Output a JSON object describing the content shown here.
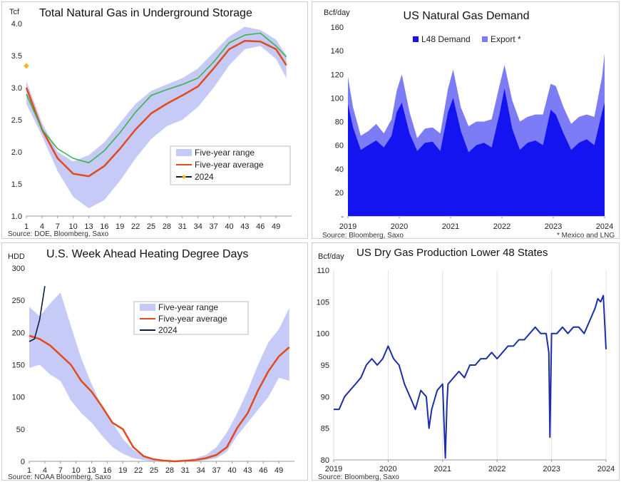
{
  "chart_data": [
    {
      "type": "area",
      "title": "Total Natural Gas in Underground Storage",
      "ylabel": "Tcf",
      "source": "Source: DOE, Bloomberg, Saxo",
      "ylim": [
        1.0,
        4.0
      ],
      "yticks": [
        "1.0",
        "1.5",
        "2.0",
        "2.5",
        "3.0",
        "3.5",
        "4.0"
      ],
      "xlim": [
        1,
        52
      ],
      "xticks": [
        "1",
        "4",
        "7",
        "10",
        "13",
        "16",
        "19",
        "22",
        "25",
        "28",
        "31",
        "34",
        "37",
        "40",
        "43",
        "46",
        "49"
      ],
      "legend_position": "bottom-right",
      "x": [
        1,
        4,
        7,
        10,
        13,
        16,
        19,
        22,
        25,
        28,
        31,
        34,
        37,
        40,
        43,
        46,
        49,
        51
      ],
      "series": [
        {
          "name": "Five-year range",
          "kind": "band",
          "color": "#c5caf7",
          "low": [
            2.75,
            2.25,
            1.7,
            1.3,
            1.12,
            1.25,
            1.55,
            1.9,
            2.2,
            2.4,
            2.5,
            2.7,
            3.0,
            3.35,
            3.6,
            3.65,
            3.45,
            3.15
          ],
          "high": [
            3.1,
            2.45,
            2.0,
            1.85,
            1.95,
            2.15,
            2.45,
            2.75,
            2.95,
            3.05,
            3.15,
            3.3,
            3.55,
            3.8,
            3.95,
            3.9,
            3.75,
            3.5
          ]
        },
        {
          "name": "Five-year average",
          "kind": "line",
          "color": "#e04a1c",
          "values": [
            3.0,
            2.35,
            1.9,
            1.66,
            1.62,
            1.78,
            2.05,
            2.35,
            2.6,
            2.75,
            2.88,
            3.02,
            3.3,
            3.6,
            3.73,
            3.72,
            3.6,
            3.35
          ]
        },
        {
          "name": "",
          "kind": "line",
          "color": "#3cb34a",
          "values": [
            2.9,
            2.35,
            2.05,
            1.9,
            1.83,
            2.02,
            2.3,
            2.62,
            2.88,
            2.97,
            3.05,
            3.15,
            3.4,
            3.7,
            3.82,
            3.85,
            3.65,
            3.48
          ]
        },
        {
          "name": "2024",
          "kind": "line",
          "color": "#0d1f3c",
          "marker_color": "#f2b82a",
          "x": [
            1
          ],
          "values": [
            3.34
          ]
        }
      ]
    },
    {
      "type": "area",
      "title": "US Natural Gas Demand",
      "ylabel": "Bcf/day",
      "source": "Source: Bloomberg, Saxo",
      "note": "* Mexico and LNG",
      "ylim": [
        0,
        160
      ],
      "yticks": [
        "-",
        "20",
        "40",
        "60",
        "80",
        "100",
        "120",
        "140",
        "160"
      ],
      "xlim": [
        2019,
        2024
      ],
      "xticks": [
        "2019",
        "2020",
        "2021",
        "2022",
        "2023",
        "2024"
      ],
      "legend_position": "top-center",
      "x": [
        2019.0,
        2019.1,
        2019.25,
        2019.4,
        2019.55,
        2019.7,
        2019.85,
        2019.95,
        2020.05,
        2020.2,
        2020.35,
        2020.5,
        2020.65,
        2020.8,
        2020.95,
        2021.05,
        2021.2,
        2021.35,
        2021.5,
        2021.65,
        2021.8,
        2021.95,
        2022.05,
        2022.2,
        2022.35,
        2022.5,
        2022.65,
        2022.8,
        2022.95,
        2023.05,
        2023.2,
        2023.35,
        2023.5,
        2023.65,
        2023.8,
        2023.95,
        2024.0
      ],
      "series": [
        {
          "name": "L48 Demand",
          "color": "#1414f0",
          "values": [
            95,
            75,
            56,
            60,
            64,
            58,
            68,
            88,
            96,
            70,
            55,
            62,
            63,
            55,
            88,
            100,
            72,
            54,
            60,
            62,
            58,
            86,
            108,
            74,
            56,
            62,
            64,
            60,
            90,
            86,
            70,
            56,
            62,
            65,
            60,
            88,
            96
          ]
        },
        {
          "name": "Export *",
          "color": "#7c7cf6",
          "values": [
            118,
            92,
            68,
            72,
            78,
            70,
            82,
            106,
            120,
            88,
            66,
            74,
            75,
            70,
            108,
            124,
            92,
            76,
            80,
            80,
            82,
            110,
            128,
            98,
            80,
            84,
            86,
            86,
            112,
            110,
            92,
            78,
            84,
            86,
            84,
            118,
            138
          ]
        }
      ]
    },
    {
      "type": "area",
      "title": "U.S. Week Ahead Heating Degree Days",
      "ylabel": "HDD",
      "source": "Source: NOAA Bloomberg, Saxo",
      "ylim": [
        0,
        300
      ],
      "yticks": [
        "0",
        "50",
        "100",
        "150",
        "200",
        "250",
        "300"
      ],
      "xlim": [
        1,
        52
      ],
      "xticks": [
        "1",
        "4",
        "7",
        "10",
        "13",
        "16",
        "19",
        "22",
        "25",
        "28",
        "31",
        "34",
        "37",
        "40",
        "43",
        "46",
        "49"
      ],
      "legend_position": "top-center",
      "x": [
        1,
        3,
        5,
        7,
        9,
        11,
        13,
        15,
        17,
        19,
        21,
        23,
        25,
        27,
        29,
        31,
        33,
        35,
        37,
        39,
        41,
        43,
        45,
        47,
        49,
        51
      ],
      "series": [
        {
          "name": "Five-year range",
          "kind": "band",
          "color": "#c5caf7",
          "low": [
            145,
            150,
            135,
            125,
            95,
            75,
            60,
            40,
            22,
            12,
            5,
            2,
            0,
            0,
            0,
            0,
            0,
            2,
            5,
            15,
            40,
            60,
            80,
            100,
            130,
            125
          ],
          "high": [
            240,
            225,
            245,
            262,
            210,
            160,
            120,
            85,
            60,
            35,
            18,
            8,
            3,
            1,
            1,
            2,
            5,
            10,
            22,
            45,
            75,
            110,
            150,
            185,
            205,
            238
          ]
        },
        {
          "name": "Five-year average",
          "kind": "line",
          "color": "#e04a1c",
          "values": [
            195,
            190,
            180,
            165,
            150,
            125,
            108,
            85,
            60,
            50,
            22,
            8,
            3,
            1,
            0,
            1,
            2,
            5,
            10,
            22,
            52,
            75,
            110,
            140,
            163,
            177
          ]
        },
        {
          "name": "2024",
          "kind": "line",
          "color": "#0d1f3c",
          "x": [
            1,
            2,
            3,
            4
          ],
          "values": [
            186,
            190,
            220,
            272
          ]
        }
      ]
    },
    {
      "type": "line",
      "title": "US Dry Gas Production Lower 48 States",
      "ylabel": "Bcf/day",
      "source": "Source: Bloomberg, Saxo",
      "ylim": [
        80,
        110
      ],
      "yticks": [
        "80",
        "85",
        "90",
        "95",
        "100",
        "105",
        "110"
      ],
      "xlim": [
        2019,
        2024
      ],
      "xticks": [
        "2019",
        "2020",
        "2021",
        "2022",
        "2023",
        "2024"
      ],
      "x": [
        2019.0,
        2019.1,
        2019.2,
        2019.3,
        2019.4,
        2019.5,
        2019.6,
        2019.7,
        2019.8,
        2019.9,
        2020.0,
        2020.1,
        2020.2,
        2020.3,
        2020.4,
        2020.5,
        2020.6,
        2020.7,
        2020.75,
        2020.8,
        2020.9,
        2021.0,
        2021.05,
        2021.08,
        2021.1,
        2021.2,
        2021.3,
        2021.4,
        2021.5,
        2021.6,
        2021.7,
        2021.8,
        2021.9,
        2022.0,
        2022.1,
        2022.2,
        2022.3,
        2022.4,
        2022.5,
        2022.6,
        2022.7,
        2022.8,
        2022.9,
        2022.95,
        2022.97,
        2023.0,
        2023.1,
        2023.2,
        2023.3,
        2023.4,
        2023.5,
        2023.6,
        2023.7,
        2023.8,
        2023.85,
        2023.9,
        2023.95,
        2024.0
      ],
      "series": [
        {
          "name": "",
          "color": "#1a2ea8",
          "values": [
            88,
            88,
            90,
            91,
            92,
            93,
            95,
            96,
            95,
            96,
            98,
            96,
            95,
            92,
            90,
            88,
            91,
            90,
            85,
            88,
            91,
            92,
            80.3,
            89,
            92,
            93,
            94,
            93,
            95,
            95,
            96,
            96,
            97,
            96,
            97,
            98,
            98,
            99,
            99,
            100,
            101,
            100,
            100,
            97,
            83.6,
            100,
            100,
            101,
            100,
            101,
            101,
            100,
            102,
            104,
            105.5,
            105,
            106,
            97.5
          ]
        }
      ]
    }
  ]
}
